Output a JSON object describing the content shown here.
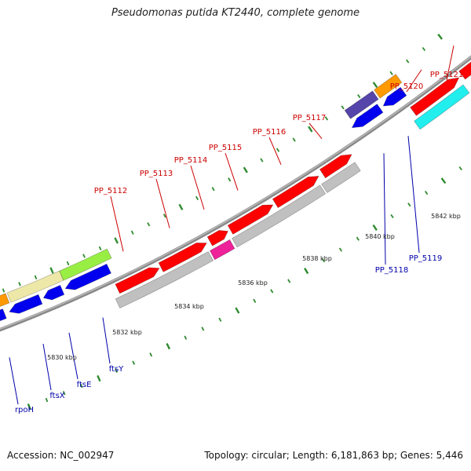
{
  "title": "Pseudomonas putida KT2440, complete genome",
  "footer": {
    "accession": "Accession: NC_002947",
    "summary": "Topology: circular; Length: 6,181,863 bp; Genes: 5,446"
  },
  "colors": {
    "backbone": "#888888",
    "tick_minor": "#2e8b2e",
    "tick_major": "#2e8b2e",
    "label_top": "#cc0000",
    "label_bottom": "#0000aa",
    "rna": "#c8c8c8"
  },
  "scale_labels": [
    "5830 kbp",
    "5832 kbp",
    "5834 kbp",
    "5836 kbp",
    "5838 kbp",
    "5840 kbp",
    "5842 kbp"
  ],
  "genes_top": [
    {
      "label": "PP_5112",
      "color": "#cc0000"
    },
    {
      "label": "PP_5113",
      "color": "#cc0000"
    },
    {
      "label": "PP_5114",
      "color": "#cc0000"
    },
    {
      "label": "PP_5115",
      "color": "#cc0000"
    },
    {
      "label": "PP_5116",
      "color": "#cc0000"
    },
    {
      "label": "PP_5117",
      "color": "#cc0000"
    },
    {
      "label": "PP_5120",
      "color": "#cc0000"
    },
    {
      "label": "PP_5121",
      "color": "#cc0000"
    }
  ],
  "genes_bottom": [
    {
      "label": "rpoH",
      "color": "#0000aa"
    },
    {
      "label": "ftsX",
      "color": "#0000aa"
    },
    {
      "label": "ftsE",
      "color": "#0000aa"
    },
    {
      "label": "ftsY",
      "color": "#0000aa"
    },
    {
      "label": "PP_5118",
      "color": "#0000aa"
    },
    {
      "label": "PP_5119",
      "color": "#0000aa"
    }
  ],
  "feature_colors": {
    "cds_forward": "#ff0000",
    "cds_reverse": "#0000ee",
    "gene_grey": "#c0c0c0",
    "gene_magenta": "#ee2299",
    "gene_cyan": "#22eeee",
    "gene_pale": "#eee8a8",
    "gene_green": "#99ee44",
    "gene_orange": "#ff9900",
    "gene_purple": "#5544aa",
    "gene_steel": "#4488bb"
  }
}
